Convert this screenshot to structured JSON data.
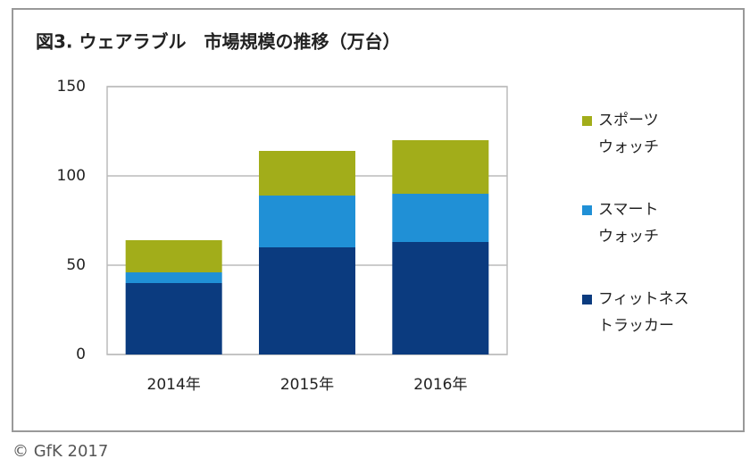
{
  "chart_data": {
    "type": "stacked-bar",
    "title": "図3. ウェアラブル　市場規模の推移（万台）",
    "categories": [
      "2014年",
      "2015年",
      "2016年"
    ],
    "series": [
      {
        "name": "スポーツ\nウォッチ",
        "color": "#a2ad1a",
        "values": [
          18,
          25,
          30
        ]
      },
      {
        "name": "スマート\nウォッチ",
        "color": "#2090d6",
        "values": [
          6,
          29,
          27
        ]
      },
      {
        "name": "フィットネス\nトラッカー",
        "color": "#0b3b7f",
        "values": [
          40,
          60,
          63
        ]
      }
    ],
    "ylim": [
      0,
      150
    ],
    "yticks": [
      0,
      50,
      100,
      150
    ],
    "grid": true,
    "legend": "right",
    "source": "© GfK 2017"
  }
}
